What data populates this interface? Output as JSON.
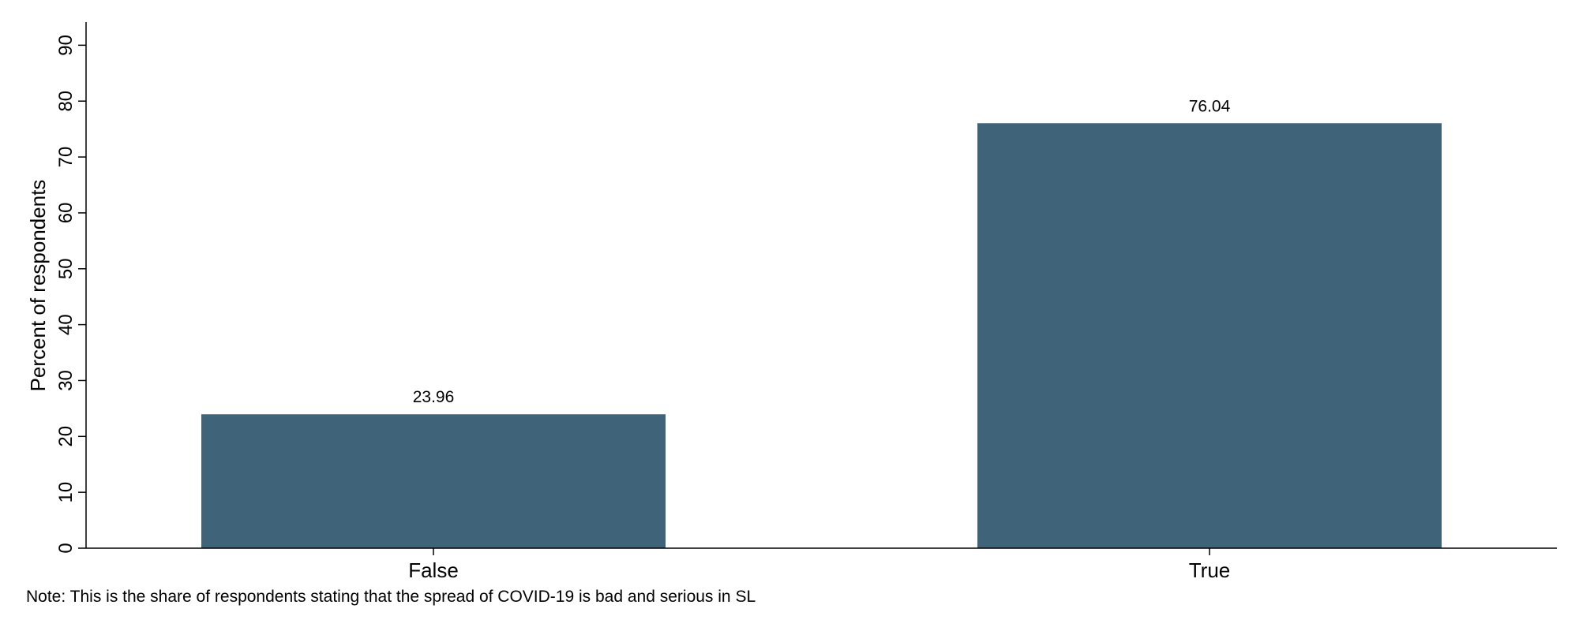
{
  "chart_data": {
    "type": "bar",
    "categories": [
      "False",
      "True"
    ],
    "values": [
      23.96,
      76.04
    ],
    "data_labels": [
      "23.96",
      "76.04"
    ],
    "title": "",
    "xlabel": "",
    "ylabel": "Percent of respondents",
    "ylim": [
      0,
      94
    ],
    "yticks": [
      0,
      10,
      20,
      30,
      40,
      50,
      60,
      70,
      80,
      90
    ],
    "bar_color": "#3f6379",
    "grid": false,
    "legend": "none"
  },
  "note": "Note: This is the share of respondents stating that the spread of COVID-19 is bad and serious in SL"
}
